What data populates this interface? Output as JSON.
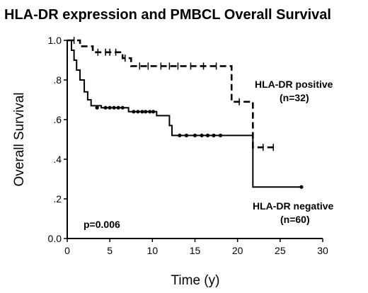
{
  "chart_data": {
    "type": "line",
    "title": "HLA-DR expression and PMBCL Overall Survival",
    "xlabel": "Time (y)",
    "ylabel": "Overall Survival",
    "xlim": [
      0,
      30
    ],
    "ylim": [
      0.0,
      1.0
    ],
    "x_ticks": [
      "0",
      "5",
      "10",
      "15",
      "20",
      "25",
      "30"
    ],
    "y_ticks": [
      "0.0",
      ".2",
      ".4",
      ".6",
      ".8",
      "1.0"
    ],
    "grid": false,
    "annotations": {
      "p_value": "p=0.006",
      "positive_label": "HLA-DR positive",
      "positive_n": "(n=32)",
      "negative_label": "HLA-DR negative",
      "negative_n": "(n=60)"
    },
    "series": [
      {
        "name": "HLA-DR positive",
        "line_style": "dashed",
        "steps": [
          [
            0,
            1.0
          ],
          [
            1.5,
            0.97
          ],
          [
            3.0,
            0.94
          ],
          [
            6.5,
            0.91
          ],
          [
            7.5,
            0.87
          ],
          [
            19.3,
            0.87
          ],
          [
            19.3,
            0.69
          ],
          [
            21.8,
            0.69
          ],
          [
            21.8,
            0.46
          ],
          [
            24.2,
            0.46
          ]
        ],
        "censored": [
          [
            0.8,
            1.0
          ],
          [
            3.6,
            0.94
          ],
          [
            4.5,
            0.94
          ],
          [
            5.0,
            0.94
          ],
          [
            5.7,
            0.94
          ],
          [
            6.8,
            0.91
          ],
          [
            8.5,
            0.87
          ],
          [
            9.5,
            0.87
          ],
          [
            11.0,
            0.87
          ],
          [
            12.0,
            0.87
          ],
          [
            13.0,
            0.87
          ],
          [
            14.5,
            0.87
          ],
          [
            16.0,
            0.87
          ],
          [
            17.5,
            0.87
          ],
          [
            20.2,
            0.69
          ],
          [
            23.0,
            0.46
          ],
          [
            24.2,
            0.46
          ]
        ]
      },
      {
        "name": "HLA-DR negative",
        "line_style": "solid",
        "steps": [
          [
            0,
            1.0
          ],
          [
            0.5,
            0.95
          ],
          [
            0.8,
            0.9
          ],
          [
            1.1,
            0.85
          ],
          [
            1.5,
            0.8
          ],
          [
            2.0,
            0.74
          ],
          [
            2.4,
            0.7
          ],
          [
            2.8,
            0.67
          ],
          [
            4.0,
            0.66
          ],
          [
            7.2,
            0.64
          ],
          [
            10.5,
            0.62
          ],
          [
            12.0,
            0.57
          ],
          [
            12.3,
            0.52
          ],
          [
            21.8,
            0.52
          ],
          [
            21.8,
            0.26
          ],
          [
            27.5,
            0.26
          ]
        ],
        "censored": [
          [
            3.5,
            0.66
          ],
          [
            4.5,
            0.66
          ],
          [
            5.0,
            0.66
          ],
          [
            5.5,
            0.66
          ],
          [
            6.0,
            0.66
          ],
          [
            6.5,
            0.66
          ],
          [
            7.8,
            0.64
          ],
          [
            8.3,
            0.64
          ],
          [
            8.8,
            0.64
          ],
          [
            9.2,
            0.64
          ],
          [
            9.7,
            0.64
          ],
          [
            10.1,
            0.64
          ],
          [
            13.2,
            0.52
          ],
          [
            14.0,
            0.52
          ],
          [
            15.0,
            0.52
          ],
          [
            15.8,
            0.52
          ],
          [
            16.5,
            0.52
          ],
          [
            17.2,
            0.52
          ],
          [
            18.0,
            0.52
          ],
          [
            27.5,
            0.26
          ]
        ]
      }
    ]
  }
}
